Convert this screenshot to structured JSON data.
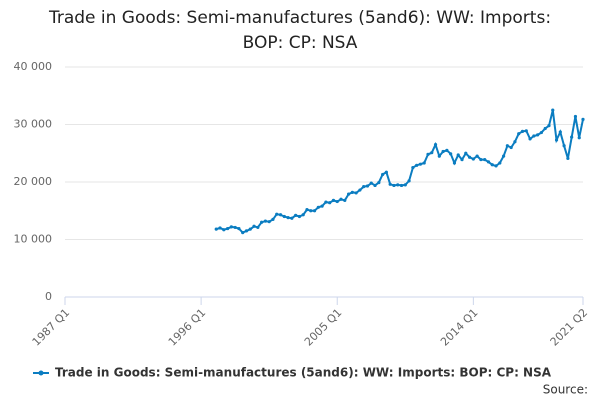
{
  "chart_data": {
    "type": "line",
    "title": "Trade in Goods: Semi-manufactures (5and6): WW: Imports: BOP: CP: NSA",
    "source": "Source:",
    "categories": [
      "1987 Q1",
      "1987 Q2",
      "1987 Q3",
      "1987 Q4",
      "1988 Q1",
      "1988 Q2",
      "1988 Q3",
      "1988 Q4",
      "1989 Q1",
      "1989 Q2",
      "1989 Q3",
      "1989 Q4",
      "1990 Q1",
      "1990 Q2",
      "1990 Q3",
      "1990 Q4",
      "1991 Q1",
      "1991 Q2",
      "1991 Q3",
      "1991 Q4",
      "1992 Q1",
      "1992 Q2",
      "1992 Q3",
      "1992 Q4",
      "1993 Q1",
      "1993 Q2",
      "1993 Q3",
      "1993 Q4",
      "1994 Q1",
      "1994 Q2",
      "1994 Q3",
      "1994 Q4",
      "1995 Q1",
      "1995 Q2",
      "1995 Q3",
      "1995 Q4",
      "1996 Q1",
      "1996 Q2",
      "1996 Q3",
      "1996 Q4",
      "1997 Q1",
      "1997 Q2",
      "1997 Q3",
      "1997 Q4",
      "1998 Q1",
      "1998 Q2",
      "1998 Q3",
      "1998 Q4",
      "1999 Q1",
      "1999 Q2",
      "1999 Q3",
      "1999 Q4",
      "2000 Q1",
      "2000 Q2",
      "2000 Q3",
      "2000 Q4",
      "2001 Q1",
      "2001 Q2",
      "2001 Q3",
      "2001 Q4",
      "2002 Q1",
      "2002 Q2",
      "2002 Q3",
      "2002 Q4",
      "2003 Q1",
      "2003 Q2",
      "2003 Q3",
      "2003 Q4",
      "2004 Q1",
      "2004 Q2",
      "2004 Q3",
      "2004 Q4",
      "2005 Q1",
      "2005 Q2",
      "2005 Q3",
      "2005 Q4",
      "2006 Q1",
      "2006 Q2",
      "2006 Q3",
      "2006 Q4",
      "2007 Q1",
      "2007 Q2",
      "2007 Q3",
      "2007 Q4",
      "2008 Q1",
      "2008 Q2",
      "2008 Q3",
      "2008 Q4",
      "2009 Q1",
      "2009 Q2",
      "2009 Q3",
      "2009 Q4",
      "2010 Q1",
      "2010 Q2",
      "2010 Q3",
      "2010 Q4",
      "2011 Q1",
      "2011 Q2",
      "2011 Q3",
      "2011 Q4",
      "2012 Q1",
      "2012 Q2",
      "2012 Q3",
      "2012 Q4",
      "2013 Q1",
      "2013 Q2",
      "2013 Q3",
      "2013 Q4",
      "2014 Q1",
      "2014 Q2",
      "2014 Q3",
      "2014 Q4",
      "2015 Q1",
      "2015 Q2",
      "2015 Q3",
      "2015 Q4",
      "2016 Q1",
      "2016 Q2",
      "2016 Q3",
      "2016 Q4",
      "2017 Q1",
      "2017 Q2",
      "2017 Q3",
      "2017 Q4",
      "2018 Q1",
      "2018 Q2",
      "2018 Q3",
      "2018 Q4",
      "2019 Q1",
      "2019 Q2",
      "2019 Q3",
      "2019 Q4",
      "2020 Q1",
      "2020 Q2",
      "2020 Q3",
      "2020 Q4",
      "2021 Q1",
      "2021 Q2"
    ],
    "series": [
      {
        "name": "Trade in Goods: Semi-manufactures (5and6): WW: Imports: BOP: CP: NSA",
        "color": "#0b7dc1",
        "values": [
          null,
          null,
          null,
          null,
          null,
          null,
          null,
          null,
          null,
          null,
          null,
          null,
          null,
          null,
          null,
          null,
          null,
          null,
          null,
          null,
          null,
          null,
          null,
          null,
          null,
          null,
          null,
          null,
          null,
          null,
          null,
          null,
          null,
          null,
          null,
          null,
          null,
          null,
          null,
          null,
          11800,
          12000,
          11700,
          11900,
          12200,
          12100,
          11900,
          11200,
          11500,
          11800,
          12300,
          12100,
          13000,
          13200,
          13100,
          13500,
          14400,
          14300,
          14000,
          13800,
          13700,
          14200,
          14000,
          14300,
          15200,
          15000,
          15000,
          15600,
          15800,
          16500,
          16400,
          16800,
          16600,
          17000,
          16800,
          17900,
          18200,
          18100,
          18600,
          19200,
          19300,
          19800,
          19400,
          19900,
          21300,
          21700,
          19600,
          19400,
          19500,
          19400,
          19500,
          20200,
          22500,
          22900,
          23100,
          23300,
          24800,
          25100,
          26500,
          24500,
          25300,
          25500,
          24900,
          23300,
          24700,
          23900,
          25000,
          24300,
          24000,
          24500,
          23900,
          23900,
          23500,
          23000,
          22800,
          23300,
          24500,
          26300,
          26000,
          27000,
          28400,
          28800,
          28900,
          27500,
          28000,
          28200,
          28600,
          29300,
          29800,
          32500,
          27300,
          28700,
          26300,
          24100,
          27800,
          31400,
          27700,
          30900
        ]
      }
    ],
    "xticks": [
      "1987 Q1",
      "1996 Q1",
      "2005 Q1",
      "2014 Q1",
      "2021 Q2"
    ],
    "ylim": [
      0,
      40000
    ],
    "yticks": [
      0,
      {
        "value": 10000,
        "label": "10 000"
      },
      {
        "value": 20000,
        "label": "20 000"
      },
      {
        "value": 30000,
        "label": "30 000"
      },
      {
        "value": 40000,
        "label": "40 000"
      }
    ],
    "grid": true
  }
}
